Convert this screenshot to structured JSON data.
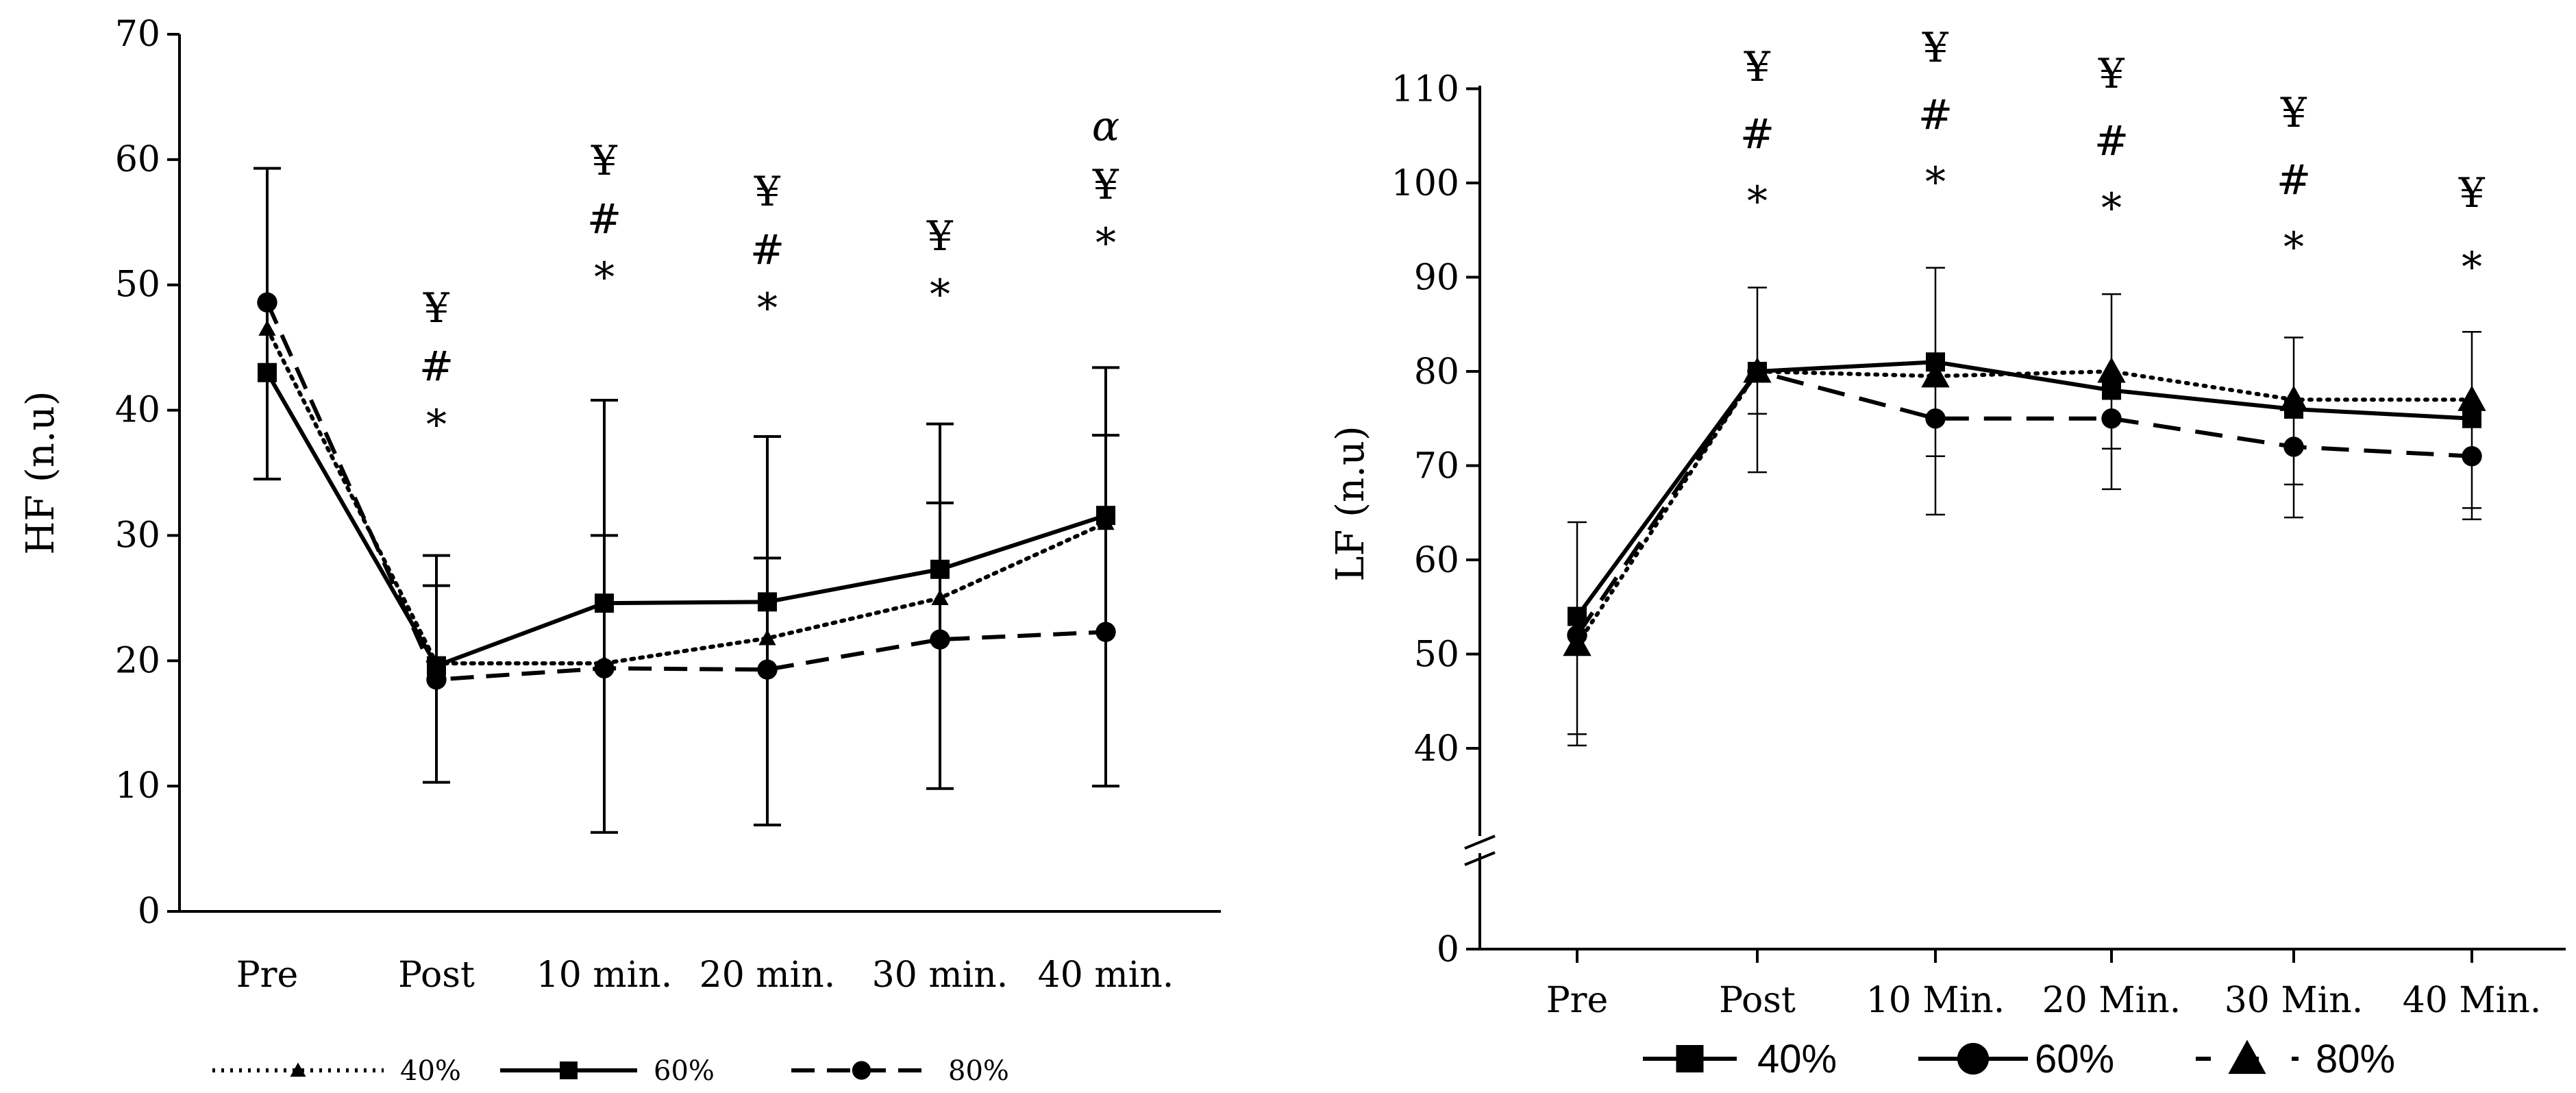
{
  "chart_data": [
    {
      "type": "line",
      "ylabel": "HF (n.u)",
      "ylim": [
        0,
        70
      ],
      "yticks": [
        0,
        10,
        20,
        30,
        40,
        50,
        60,
        70
      ],
      "categories": [
        "Pre",
        "Post",
        "10 min.",
        "20 min.",
        "30 min.",
        "40 min."
      ],
      "series": [
        {
          "name": "40%",
          "marker": "triangle",
          "style": "dotted",
          "values": [
            46.5,
            19.8,
            19.8,
            21.8,
            25.0,
            31.0
          ]
        },
        {
          "name": "60%",
          "marker": "square",
          "style": "solid",
          "values": [
            43.0,
            19.6,
            24.6,
            24.7,
            27.3,
            31.6
          ]
        },
        {
          "name": "80%",
          "marker": "circle",
          "style": "dashed",
          "values": [
            48.6,
            18.5,
            19.4,
            19.3,
            21.7,
            22.3
          ]
        }
      ],
      "error_bars": [
        {
          "category": "Pre",
          "low": 34.5,
          "high": 59.3
        },
        {
          "category": "Post",
          "low": 10.3,
          "high": 28.4,
          "mid": 26.0
        },
        {
          "category": "10 min.",
          "low": 6.3,
          "high": 40.8,
          "mid": 30.0
        },
        {
          "category": "20 min.",
          "low": 6.9,
          "high": 37.9,
          "mid": 28.2
        },
        {
          "category": "30 min.",
          "low": 9.8,
          "high": 38.9,
          "mid": 32.6
        },
        {
          "category": "40 min.",
          "low": 10.0,
          "high": 43.4,
          "mid": 38.0
        }
      ],
      "annotations": [
        {
          "category": "Post",
          "symbols": [
            "¥",
            "#",
            "*"
          ]
        },
        {
          "category": "10 min.",
          "symbols": [
            "¥",
            "#",
            "*"
          ]
        },
        {
          "category": "20 min.",
          "symbols": [
            "¥",
            "#",
            "*"
          ]
        },
        {
          "category": "30 min.",
          "symbols": [
            "¥",
            "*"
          ]
        },
        {
          "category": "40 min.",
          "symbols": [
            "α",
            "¥",
            "*"
          ]
        }
      ],
      "legend": [
        "40%",
        "60%",
        "80%"
      ]
    },
    {
      "type": "line",
      "ylabel": "LF (n.u)",
      "ylim": [
        0,
        110
      ],
      "axis_break": "between 0 and 40",
      "yticks": [
        0,
        40,
        50,
        60,
        70,
        80,
        90,
        100,
        110
      ],
      "categories": [
        "Pre",
        "Post",
        "10 Min.",
        "20 Min.",
        "30 Min.",
        "40 Min."
      ],
      "series": [
        {
          "name": "40%",
          "marker": "square",
          "style": "solid",
          "values": [
            54,
            80,
            81,
            78,
            76,
            75
          ]
        },
        {
          "name": "60%",
          "marker": "circle",
          "style": "dashed",
          "values": [
            52,
            80,
            75,
            75,
            72,
            71
          ]
        },
        {
          "name": "80%",
          "marker": "triangle",
          "style": "dotted",
          "values": [
            51,
            80,
            79.5,
            80,
            77,
            77
          ]
        }
      ],
      "error_bars": [
        {
          "category": "Pre",
          "low": 40.3,
          "high": 64.0,
          "mid": 41.5
        },
        {
          "category": "Post",
          "low": 69.3,
          "high": 88.9,
          "mid": 75.5
        },
        {
          "category": "10 Min.",
          "low": 64.8,
          "high": 91.0,
          "mid": 71.0
        },
        {
          "category": "20 Min.",
          "low": 67.5,
          "high": 88.2,
          "mid": 71.8
        },
        {
          "category": "30 Min.",
          "low": 64.5,
          "high": 83.6,
          "mid": 68.0
        },
        {
          "category": "40 Min.",
          "low": 64.3,
          "high": 84.2,
          "mid": 65.5
        }
      ],
      "annotations": [
        {
          "category": "Post",
          "symbols": [
            "¥",
            "#",
            "*"
          ]
        },
        {
          "category": "10 Min.",
          "symbols": [
            "¥",
            "#",
            "*"
          ]
        },
        {
          "category": "20 Min.",
          "symbols": [
            "¥",
            "#",
            "*"
          ]
        },
        {
          "category": "30 Min.",
          "symbols": [
            "¥",
            "#",
            "*"
          ]
        },
        {
          "category": "40 Min.",
          "symbols": [
            "¥",
            "*"
          ]
        }
      ],
      "legend": [
        "40%",
        "60%",
        "80%"
      ]
    }
  ]
}
